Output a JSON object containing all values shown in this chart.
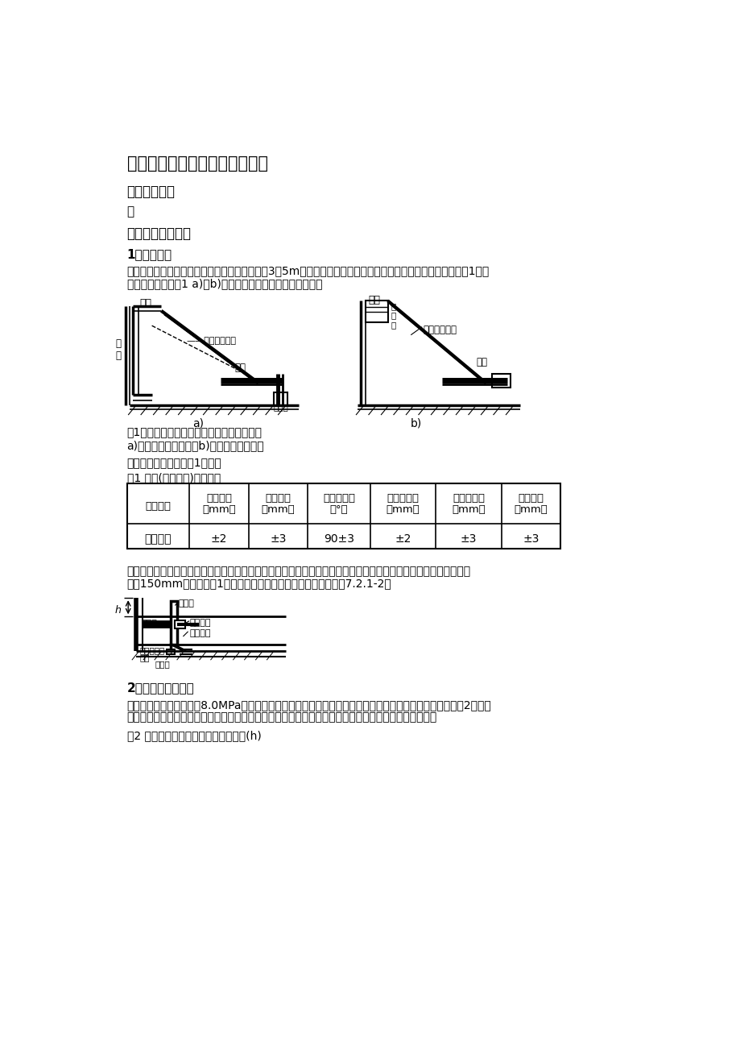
{
  "title": "厂区道路及过路管施工技术交底",
  "section1": "一、工程概况",
  "section1_content": "略",
  "section2": "二、质量交底内容",
  "subsection1": "1、模板支设",
  "para1_line1": "钢模板的高度应为面板设计厚度，模板长度宜为3～5m。需设置拉杆时，模板应设拉杆插入孔。每米模板应设置1处支",
  "para1_line2": "撑固定装置，见图1 a)、b)。模板垂直度用垫木模方法调整。",
  "fig1_caption": "图1（槽）钢模板焊接钢筋或角钢固定示意图",
  "fig1_subcaption": "a)焊接钢筋固定支架；b)焊接角钢固定支架",
  "para2": "模板的精确度应符合表1规定。",
  "table1_title": "表1 模板(加工矫正)允许偏差",
  "table1_headers": [
    "施工方式",
    "高度偏差\n（mm）",
    "局部变形\n（mm）",
    "垂直边夹角\n（°）",
    "顶面平整度\n（mm）",
    "侧面平整度\n（mm）",
    "纵向变形\n（mm）"
  ],
  "table1_row": [
    "小型机具",
    "±2",
    "±3",
    "90±3",
    "±2",
    "±3",
    "±3"
  ],
  "para3_line1": "横向施工缝端模板应按设计规定的传力杆直径和间距设置传力杆插入孔和定位套管。两边缘传力杆到自由边距离不宜",
  "para3_line2": "小于150mm。每米设置1个垂直固定孔套。工作缝端模侧立面见图7.2.1-2。",
  "subsection2": "2、模板拆除及矫正",
  "para4_line1": "当混凝土抗压强度不小于8.0MPa方可拆模。当缺乏强度实测数据时，边侧模板的允许最早拆模时间宜符合表2的规定",
  "para4_line2": "。达到要求，不能拆除端模时，可空出一块面板，重新起头摊铺，空出的面板待两端均可拆模后再补做。",
  "table2_title": "表2 混凝土路面板的允许最早拆模时间(h)",
  "bg_color": "#ffffff",
  "text_color": "#000000"
}
